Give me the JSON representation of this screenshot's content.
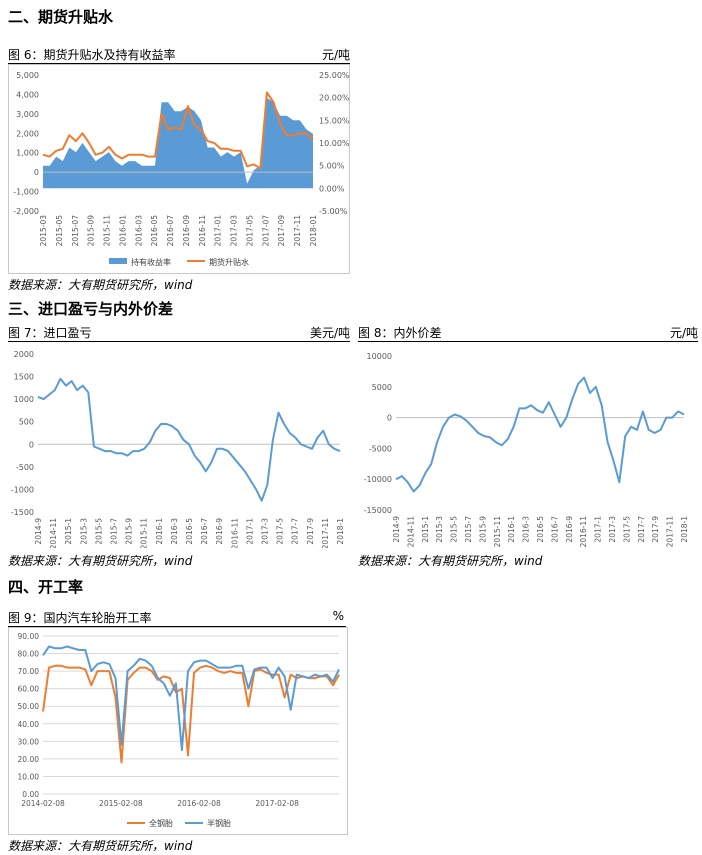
{
  "sections": {
    "s2": "二、期货升贴水",
    "s3": "三、进口盈亏与内外价差",
    "s4": "四、开工率"
  },
  "source_text": "数据来源：大有期货研究所，wind",
  "figures": {
    "fig6": {
      "title": "图 6：期货升贴水及持有收益率",
      "unit": "元/吨"
    },
    "fig7": {
      "title": "图 7：进口盈亏",
      "unit": "美元/吨"
    },
    "fig8": {
      "title": "图 8：内外价差",
      "unit": "元/吨"
    },
    "fig9": {
      "title": "图 9：国内汽车轮胎开工率",
      "unit": "%"
    }
  },
  "colors": {
    "blue": "#5B9BD5",
    "orange": "#ED7D31",
    "grid": "#d9d9d9",
    "axis_text": "#595959"
  },
  "chart_data": [
    {
      "id": "fig6",
      "type": "area",
      "title": "图 6：期货升贴水及持有收益率",
      "x_ticks": [
        "2015-03",
        "2015-05",
        "2015-07",
        "2015-09",
        "2015-11",
        "2016-01",
        "2016-03",
        "2016-05",
        "2016-07",
        "2016-09",
        "2016-11",
        "2017-01",
        "2017-03",
        "2017-05",
        "2017-07",
        "2017-09",
        "2017-11",
        "2018-01"
      ],
      "y_left": {
        "ylim": [
          -2000,
          5000
        ],
        "ticks": [
          "-2,000",
          "-1,000",
          "0",
          "1,000",
          "2,000",
          "3,000",
          "4,000",
          "5,000"
        ]
      },
      "y_right": {
        "ylim": [
          -0.05,
          0.25
        ],
        "ticks": [
          "-5.00%",
          "0.00%",
          "5.00%",
          "10.00%",
          "15.00%",
          "20.00%",
          "25.00%"
        ]
      },
      "legend_position": "bottom",
      "series": [
        {
          "name": "持有收益率",
          "axis": "right",
          "color": "#5B9BD5",
          "kind": "area",
          "values": [
            0.05,
            0.05,
            0.07,
            0.06,
            0.09,
            0.08,
            0.1,
            0.08,
            0.06,
            0.07,
            0.08,
            0.06,
            0.05,
            0.06,
            0.06,
            0.05,
            0.05,
            0.05,
            0.19,
            0.19,
            0.17,
            0.17,
            0.18,
            0.17,
            0.15,
            0.09,
            0.09,
            0.07,
            0.08,
            0.07,
            0.08,
            0.01,
            0.04,
            0.05,
            0.2,
            0.19,
            0.16,
            0.16,
            0.15,
            0.15,
            0.13,
            0.12
          ]
        },
        {
          "name": "期货升贴水",
          "axis": "left",
          "color": "#ED7D31",
          "kind": "line",
          "values": [
            900,
            800,
            1100,
            1200,
            1900,
            1600,
            2000,
            1500,
            900,
            1000,
            1300,
            900,
            700,
            900,
            900,
            900,
            800,
            800,
            3000,
            2200,
            2300,
            2200,
            3400,
            2400,
            2200,
            1600,
            1500,
            1200,
            1200,
            1100,
            1100,
            300,
            400,
            200,
            4100,
            3600,
            2500,
            1900,
            1900,
            2000,
            2000,
            1700
          ]
        }
      ]
    },
    {
      "id": "fig7",
      "type": "line",
      "title": "图 7：进口盈亏",
      "x_ticks": [
        "2014-9",
        "2014-11",
        "2015-1",
        "2015-3",
        "2015-5",
        "2015-7",
        "2015-9",
        "2015-11",
        "2016-1",
        "2016-3",
        "2016-5",
        "2016-7",
        "2016-9",
        "2016-11",
        "2017-1",
        "2017-3",
        "2017-5",
        "2017-7",
        "2017-9",
        "2017-11",
        "2018-1"
      ],
      "ylim": [
        -1500,
        2000
      ],
      "y_ticks": [
        "-1500",
        "-1000",
        "-500",
        "0",
        "500",
        "1000",
        "1500",
        "2000"
      ],
      "series": [
        {
          "name": "",
          "color": "#5B9BD5",
          "values": [
            1050,
            1000,
            1100,
            1200,
            1450,
            1300,
            1400,
            1200,
            1300,
            1150,
            -50,
            -100,
            -150,
            -150,
            -200,
            -200,
            -250,
            -150,
            -150,
            -100,
            50,
            300,
            450,
            450,
            400,
            300,
            100,
            0,
            -250,
            -400,
            -600,
            -400,
            -100,
            -100,
            -150,
            -300,
            -450,
            -600,
            -800,
            -1000,
            -1250,
            -900,
            100,
            700,
            450,
            250,
            150,
            0,
            -50,
            -100,
            150,
            300,
            0,
            -100,
            -150
          ]
        }
      ]
    },
    {
      "id": "fig8",
      "type": "line",
      "title": "图 8：内外价差",
      "x_ticks": [
        "2014-9",
        "2014-11",
        "2015-1",
        "2015-3",
        "2015-5",
        "2015-7",
        "2015-9",
        "2015-11",
        "2016-1",
        "2016-3",
        "2016-5",
        "2016-7",
        "2016-9",
        "2016-11",
        "2017-1",
        "2017-3",
        "2017-5",
        "2017-7",
        "2017-9",
        "2017-11",
        "2018-1"
      ],
      "ylim": [
        -15000,
        10000
      ],
      "y_ticks": [
        "-15000",
        "-10000",
        "-5000",
        "0",
        "5000",
        "10000"
      ],
      "series": [
        {
          "name": "",
          "color": "#5B9BD5",
          "values": [
            -10000,
            -9500,
            -10500,
            -12000,
            -11000,
            -9000,
            -7500,
            -4000,
            -1500,
            0,
            500,
            200,
            -500,
            -1500,
            -2500,
            -3000,
            -3200,
            -4000,
            -4500,
            -3500,
            -1500,
            1500,
            1500,
            2000,
            1200,
            800,
            2500,
            500,
            -1500,
            0,
            3000,
            5500,
            6500,
            4000,
            5000,
            2000,
            -4000,
            -7000,
            -10500,
            -3000,
            -1500,
            -2000,
            1000,
            -2000,
            -2500,
            -2000,
            0,
            0,
            1000,
            500
          ]
        }
      ]
    },
    {
      "id": "fig9",
      "type": "line",
      "title": "图 9：国内汽车轮胎开工率",
      "x_ticks": [
        "2014-02-08",
        "2015-02-08",
        "2016-02-08",
        "2017-02-08"
      ],
      "ylim": [
        0,
        90
      ],
      "y_ticks": [
        "0.00",
        "10.00",
        "20.00",
        "30.00",
        "40.00",
        "50.00",
        "60.00",
        "70.00",
        "80.00",
        "90.00"
      ],
      "legend_position": "bottom",
      "series": [
        {
          "name": "全钢胎",
          "color": "#ED7D31",
          "values": [
            47,
            72,
            73,
            73,
            72,
            72,
            72,
            71,
            62,
            70,
            70,
            70,
            55,
            18,
            65,
            69,
            72,
            72,
            70,
            65,
            67,
            66,
            58,
            60,
            22,
            69,
            72,
            73,
            72,
            70,
            69,
            70,
            69,
            69,
            50,
            70,
            71,
            69,
            68,
            68,
            55,
            68,
            66,
            67,
            66,
            66,
            67,
            67,
            62,
            68
          ]
        },
        {
          "name": "半钢胎",
          "color": "#5B9BD5",
          "values": [
            79,
            84,
            83,
            83,
            84,
            83,
            82,
            82,
            70,
            74,
            75,
            74,
            66,
            28,
            70,
            73,
            77,
            76,
            73,
            66,
            63,
            56,
            63,
            25,
            70,
            75,
            76,
            76,
            74,
            72,
            72,
            72,
            73,
            73,
            60,
            71,
            72,
            72,
            66,
            72,
            67,
            48,
            68,
            67,
            66,
            68,
            67,
            68,
            64,
            71
          ]
        }
      ]
    }
  ]
}
